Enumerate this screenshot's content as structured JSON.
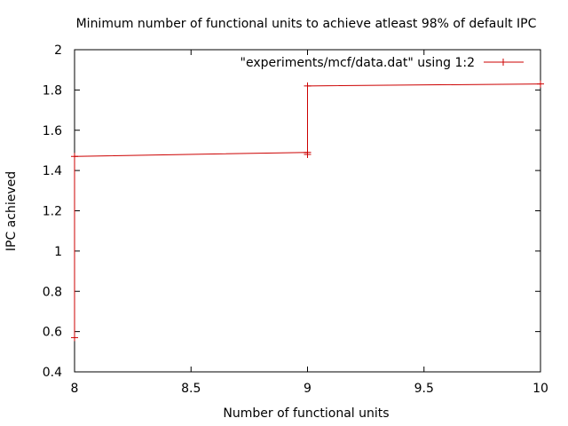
{
  "chart_data": {
    "type": "line",
    "title": "Minimum number of functional units to achieve atleast 98% of default IPC",
    "xlabel": "Number of functional units",
    "ylabel": "IPC achieved",
    "xlim": [
      8,
      10
    ],
    "ylim": [
      0.4,
      2
    ],
    "xticks": [
      8,
      8.5,
      9,
      9.5,
      10
    ],
    "xtick_labels": [
      "8",
      "8.5",
      "9",
      "9.5",
      "10"
    ],
    "yticks": [
      0.4,
      0.6,
      0.8,
      1,
      1.2,
      1.4,
      1.6,
      1.8,
      2
    ],
    "ytick_labels": [
      "0.4",
      "0.6",
      "0.8",
      "1",
      "1.2",
      "1.4",
      "1.6",
      "1.8",
      "2"
    ],
    "grid": false,
    "legend_position": "top-right",
    "series": [
      {
        "name": "\"experiments/mcf/data.dat\" using 1:2",
        "color": "#cc0000",
        "marker": "plus",
        "x": [
          8,
          8,
          9,
          9,
          9,
          10
        ],
        "y": [
          0.57,
          1.47,
          1.49,
          1.48,
          1.82,
          1.83
        ]
      }
    ]
  }
}
